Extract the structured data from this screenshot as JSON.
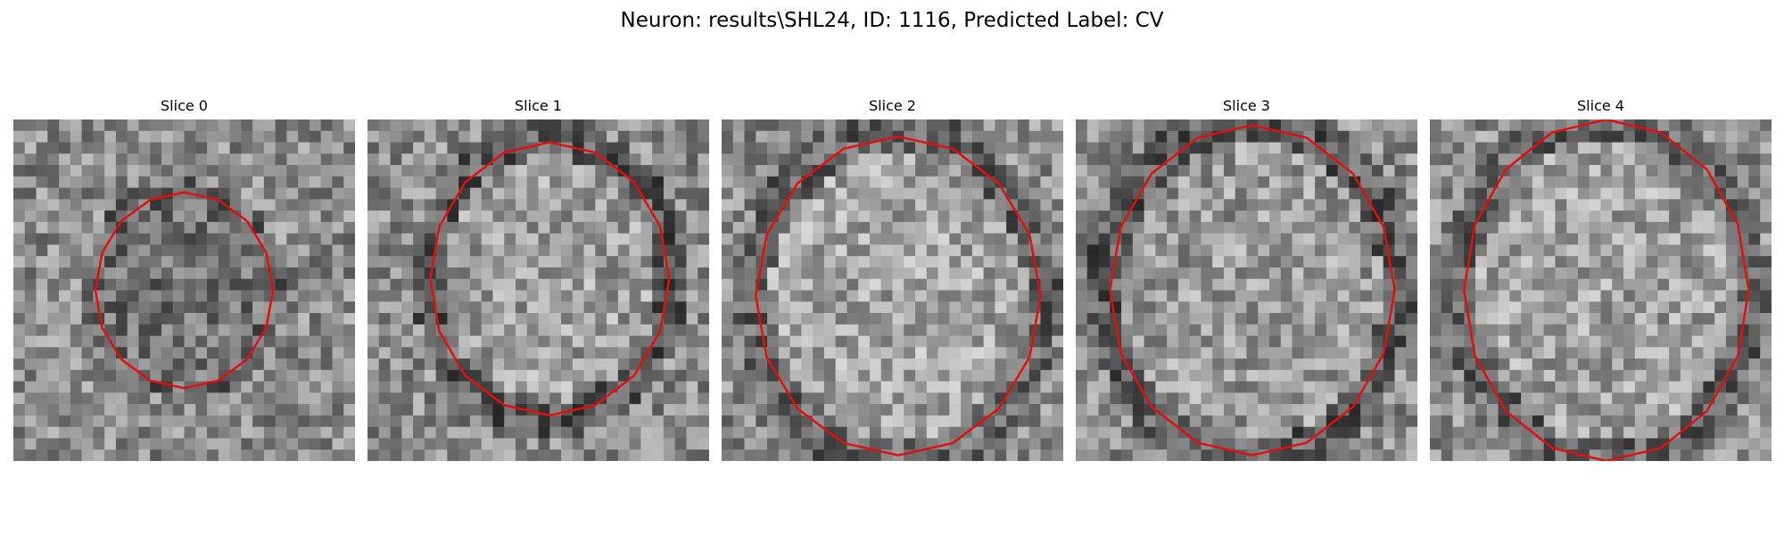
{
  "figure": {
    "suptitle": "Neuron: results\\SHL24, ID: 1116, Predicted Label: CV"
  },
  "panels": [
    {
      "title": "Slice 0",
      "contour_color": "#e01010",
      "cells": [],
      "contour": []
    },
    {
      "title": "Slice 1",
      "contour_color": "#e01010",
      "cells": [],
      "contour": []
    },
    {
      "title": "Slice 2",
      "contour_color": "#e01010",
      "cells": [],
      "contour": []
    },
    {
      "title": "Slice 3",
      "contour_color": "#e01010",
      "cells": [],
      "contour": []
    },
    {
      "title": "Slice 4",
      "contour_color": "#e01010",
      "cells": [],
      "contour": []
    }
  ]
}
